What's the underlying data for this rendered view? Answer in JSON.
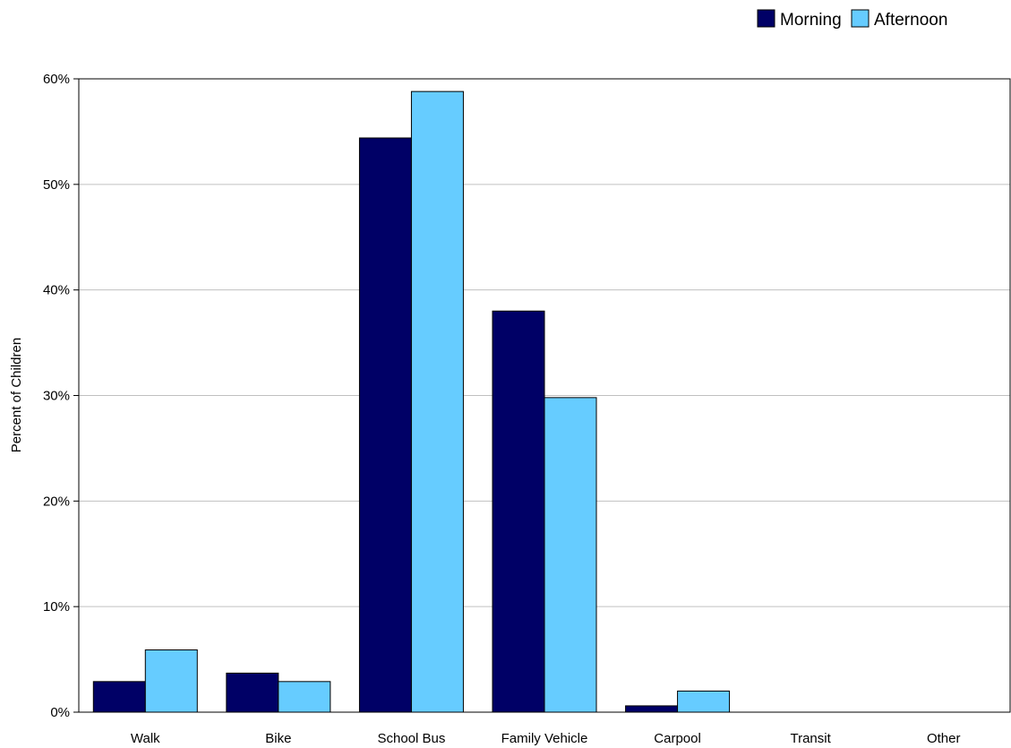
{
  "chart_data": {
    "type": "bar",
    "categories": [
      "Walk",
      "Bike",
      "School Bus",
      "Family Vehicle",
      "Carpool",
      "Transit",
      "Other"
    ],
    "series": [
      {
        "name": "Morning",
        "values": [
          2.9,
          3.7,
          54.4,
          38.0,
          0.6,
          0,
          0
        ],
        "color": "#000066"
      },
      {
        "name": "Afternoon",
        "values": [
          5.9,
          2.9,
          58.8,
          29.8,
          2.0,
          0,
          0
        ],
        "color": "#66CCFF"
      }
    ],
    "ylabel": "Percent of Children",
    "ylim": [
      0,
      60
    ],
    "yticks": [
      "0%",
      "10%",
      "20%",
      "30%",
      "40%",
      "50%",
      "60%"
    ],
    "grid": true,
    "legend_position": "top-right"
  }
}
